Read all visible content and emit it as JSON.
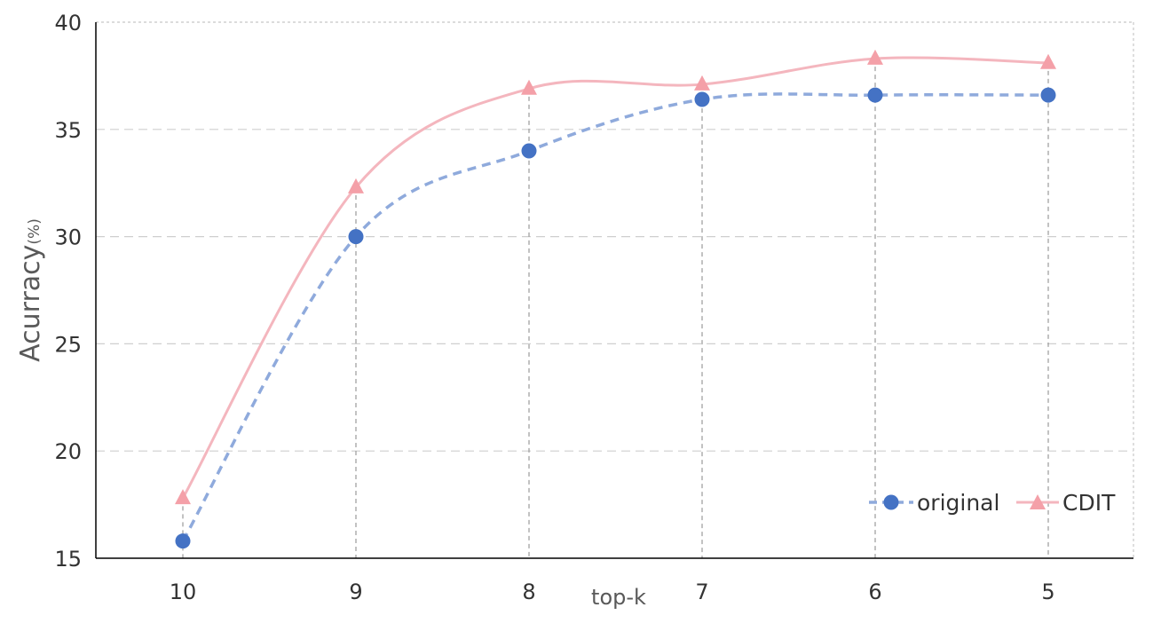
{
  "chart_data": {
    "type": "line",
    "title": "",
    "xlabel": "top-k",
    "ylabel": "Acurracy",
    "ylabel_unit": "(%)",
    "categories": [
      "10",
      "9",
      "8",
      "7",
      "6",
      "5"
    ],
    "ylim": [
      15,
      40
    ],
    "yticks": [
      15,
      20,
      25,
      30,
      35,
      40
    ],
    "grid": true,
    "legend_position": "bottom-right",
    "series": [
      {
        "name": "original",
        "values": [
          15.8,
          30.0,
          34.0,
          36.4,
          36.6,
          36.6
        ],
        "color": "#4472C4",
        "line_color": "#8FAADC",
        "line_style": "dashed",
        "marker": "circle",
        "smooth": true
      },
      {
        "name": "CDIT",
        "values": [
          17.8,
          32.3,
          36.9,
          37.1,
          38.3,
          38.1
        ],
        "color": "#F4A0A8",
        "line_color": "#F4B6BE",
        "line_style": "solid",
        "marker": "triangle",
        "smooth": true
      }
    ]
  }
}
